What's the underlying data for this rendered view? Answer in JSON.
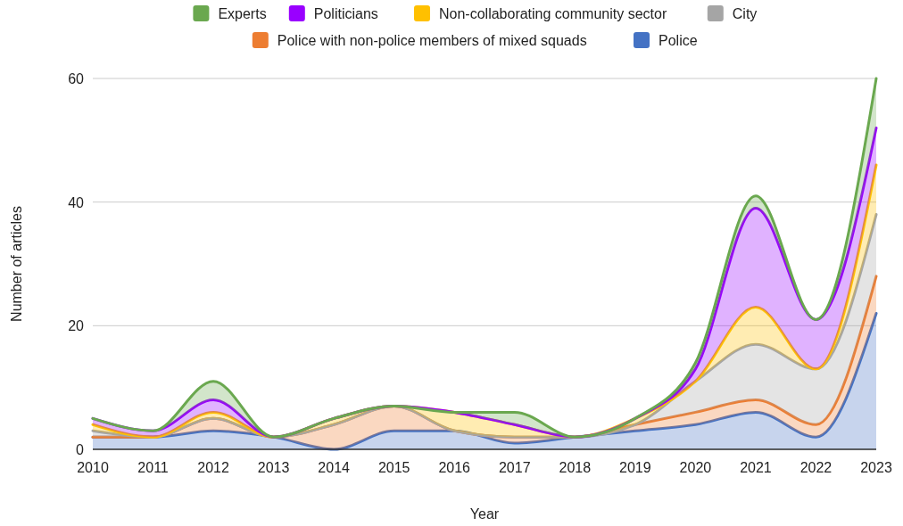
{
  "chart_data": {
    "type": "area",
    "stacked": true,
    "xlabel": "Year",
    "ylabel": "Number of articles",
    "x": [
      2010,
      2011,
      2012,
      2013,
      2014,
      2015,
      2016,
      2017,
      2018,
      2019,
      2020,
      2021,
      2022,
      2023
    ],
    "xlim": [
      2010,
      2023
    ],
    "xticks": [
      2010,
      2011,
      2012,
      2013,
      2014,
      2015,
      2016,
      2017,
      2018,
      2019,
      2020,
      2021,
      2022,
      2023
    ],
    "ylim": [
      0,
      60
    ],
    "yticks": [
      0,
      20,
      40,
      60
    ],
    "grid": "y",
    "legend": "top",
    "series": [
      {
        "name": "Police",
        "color": "#4472c4",
        "values": [
          2,
          2,
          3,
          2,
          0,
          3,
          3,
          1,
          2,
          3,
          4,
          6,
          2,
          22
        ]
      },
      {
        "name": "Police with non-police members of mixed squads",
        "color": "#ed7d31",
        "values": [
          0,
          0,
          2,
          0,
          4,
          4,
          0,
          1,
          0,
          1,
          2,
          2,
          2,
          6
        ]
      },
      {
        "name": "City",
        "color": "#a5a5a5",
        "values": [
          1,
          0,
          0,
          0,
          0,
          0,
          0,
          0,
          0,
          0,
          5,
          9,
          9,
          10
        ]
      },
      {
        "name": "Non-collaborating community sector",
        "color": "#ffc000",
        "values": [
          1,
          0,
          1,
          0,
          1,
          0,
          3,
          2,
          0,
          1,
          0,
          6,
          0,
          8
        ]
      },
      {
        "name": "Politicians",
        "color": "#9900ff",
        "values": [
          1,
          1,
          2,
          0,
          0,
          0,
          0,
          0,
          0,
          0,
          2,
          16,
          8,
          6
        ]
      },
      {
        "name": "Experts",
        "color": "#6aa84f",
        "values": [
          0,
          0,
          3,
          0,
          0,
          0,
          0,
          2,
          0,
          0,
          1,
          2,
          0,
          8
        ]
      }
    ]
  }
}
